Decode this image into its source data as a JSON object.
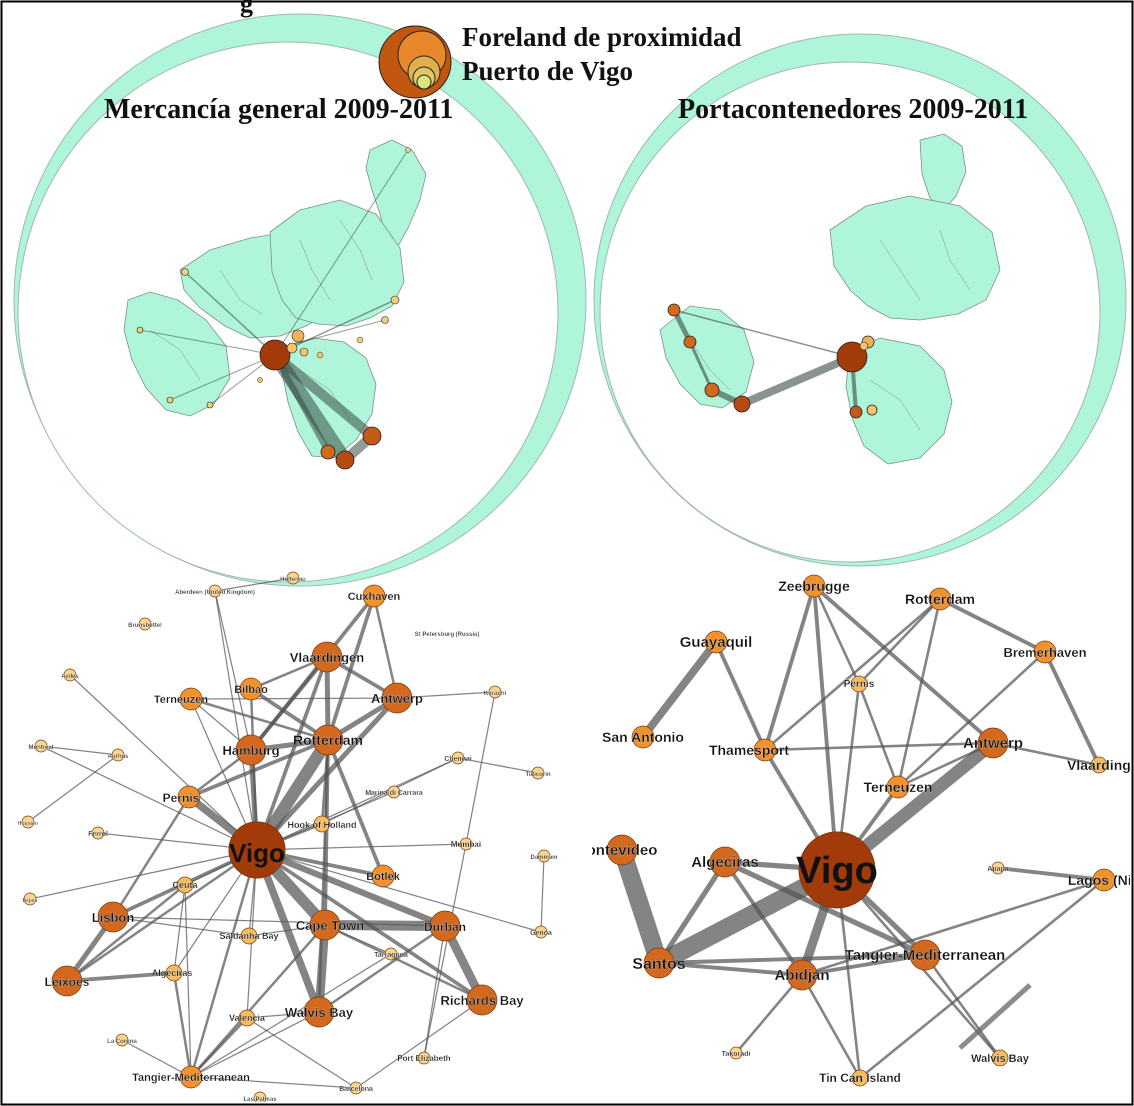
{
  "figure": {
    "top_text": "g",
    "legend": {
      "line1": "Foreland de proximidad",
      "line2": "Puerto de Vigo"
    },
    "panel_left_title": "Mercancía general 2009-2011",
    "panel_right_title": "Portacontenedores 2009-2011"
  },
  "colors": {
    "ocean": "#aef5d9",
    "land": "#aef5d9",
    "land_line": "#7f8f88",
    "edge": "#555555",
    "node_large": "#a23a0a",
    "node_mid": "#d2691e",
    "node_orange": "#f2922f",
    "node_light": "#f6bd60",
    "node_pale": "#fbd58c"
  },
  "left_network": {
    "nodes": [
      {
        "id": "vigo",
        "label": "Vigo",
        "tier": "hub"
      },
      {
        "id": "rotterdam",
        "label": "Rotterdam",
        "tier": "l"
      },
      {
        "id": "hamburg",
        "label": "Hamburg",
        "tier": "l"
      },
      {
        "id": "antwerp",
        "label": "Antwerp",
        "tier": "l"
      },
      {
        "id": "vlaardingen",
        "label": "Vlaardingen",
        "tier": "l"
      },
      {
        "id": "bilbao",
        "label": "Bilbao",
        "tier": "m"
      },
      {
        "id": "terneuzen",
        "label": "Terneuzen",
        "tier": "m"
      },
      {
        "id": "cuxhaven",
        "label": "Cuxhaven",
        "tier": "m"
      },
      {
        "id": "pernis",
        "label": "Pernis",
        "tier": "m"
      },
      {
        "id": "lisbon",
        "label": "Lisbon",
        "tier": "l"
      },
      {
        "id": "leixoes",
        "label": "Leixoes",
        "tier": "l"
      },
      {
        "id": "capetown",
        "label": "Cape Town",
        "tier": "l"
      },
      {
        "id": "durban",
        "label": "Durban",
        "tier": "l"
      },
      {
        "id": "walvis",
        "label": "Walvis Bay",
        "tier": "l"
      },
      {
        "id": "richards",
        "label": "Richards Bay",
        "tier": "l"
      },
      {
        "id": "botlek",
        "label": "Botlek",
        "tier": "m"
      },
      {
        "id": "tangier",
        "label": "Tangier-Mediterranean",
        "tier": "m"
      },
      {
        "id": "hook",
        "label": "Hook of Holland",
        "tier": "s"
      },
      {
        "id": "ceuta",
        "label": "Ceuta",
        "tier": "s"
      },
      {
        "id": "algeciras",
        "label": "Algeciras",
        "tier": "s"
      },
      {
        "id": "saldanha",
        "label": "Saldanha Bay",
        "tier": "s"
      },
      {
        "id": "valencia",
        "label": "Valencia",
        "tier": "s"
      },
      {
        "id": "tarragona",
        "label": "Tarragona",
        "tier": "xs"
      },
      {
        "id": "portelizabeth",
        "label": "Port Elizabeth",
        "tier": "xs"
      },
      {
        "id": "barcelona",
        "label": "Barcelona",
        "tier": "xs"
      },
      {
        "id": "laspalmas",
        "label": "Las Palmas",
        "tier": "xs"
      },
      {
        "id": "lacoruna",
        "label": "La Coruna",
        "tier": "xs"
      },
      {
        "id": "genoa",
        "label": "Genoa",
        "tier": "xs"
      },
      {
        "id": "mumbai",
        "label": "Mumbai",
        "tier": "xs"
      },
      {
        "id": "dammam",
        "label": "Dammam",
        "tier": "xs"
      },
      {
        "id": "chennai",
        "label": "Chennai",
        "tier": "xs"
      },
      {
        "id": "tuticorin",
        "label": "Tuticorin",
        "tier": "xs"
      },
      {
        "id": "marina",
        "label": "Marina di Carrara",
        "tier": "xs"
      },
      {
        "id": "karachi",
        "label": "Karachi",
        "tier": "xs"
      },
      {
        "id": "stpetersburg",
        "label": "St Petersburg (Russia)",
        "tier": "none"
      },
      {
        "id": "holtenau",
        "label": "Holtenau",
        "tier": "xs"
      },
      {
        "id": "aberdeen",
        "label": "Aberdeen (United Kingdom)",
        "tier": "xs"
      },
      {
        "id": "brunsbuttel",
        "label": "Brunsbuttel",
        "tier": "xs"
      },
      {
        "id": "aviles",
        "label": "Aviles",
        "tier": "xs"
      },
      {
        "id": "aarhus",
        "label": "Aarhus",
        "tier": "xs"
      },
      {
        "id": "montreal",
        "label": "Montreal",
        "tier": "xs"
      },
      {
        "id": "houston",
        "label": "Houston",
        "tier": "xs"
      },
      {
        "id": "ferrol",
        "label": "Ferrol",
        "tier": "xs"
      },
      {
        "id": "bejaia",
        "label": "Bejaia",
        "tier": "xs"
      }
    ],
    "edges": [
      [
        "vigo",
        "rotterdam",
        10
      ],
      [
        "vigo",
        "capetown",
        9
      ],
      [
        "vigo",
        "walvis",
        6
      ],
      [
        "vigo",
        "durban",
        5
      ],
      [
        "vigo",
        "pernis",
        6
      ],
      [
        "vigo",
        "hamburg",
        4
      ],
      [
        "vigo",
        "antwerp",
        4
      ],
      [
        "vigo",
        "vlaardingen",
        3
      ],
      [
        "vigo",
        "botlek",
        3
      ],
      [
        "vigo",
        "lisbon",
        3
      ],
      [
        "vigo",
        "leixoes",
        2
      ],
      [
        "vigo",
        "tangier",
        2
      ],
      [
        "vigo",
        "hook",
        2
      ],
      [
        "vigo",
        "bilbao",
        2
      ],
      [
        "vigo",
        "terneuzen",
        1
      ],
      [
        "vigo",
        "ceuta",
        1
      ],
      [
        "vigo",
        "algeciras",
        1
      ],
      [
        "vigo",
        "valencia",
        1
      ],
      [
        "vigo",
        "saldanha",
        1
      ],
      [
        "vigo",
        "mumbai",
        1
      ],
      [
        "vigo",
        "genoa",
        1
      ],
      [
        "vigo",
        "chennai",
        1
      ],
      [
        "vigo",
        "marina",
        1
      ],
      [
        "vigo",
        "aviles",
        1
      ],
      [
        "vigo",
        "ferrol",
        1
      ],
      [
        "vigo",
        "montreal",
        1
      ],
      [
        "vigo",
        "aberdeen",
        1
      ],
      [
        "vigo",
        "bejaia",
        1
      ],
      [
        "vigo",
        "richards",
        3
      ],
      [
        "rotterdam",
        "hamburg",
        4
      ],
      [
        "rotterdam",
        "antwerp",
        4
      ],
      [
        "rotterdam",
        "vlaardingen",
        4
      ],
      [
        "rotterdam",
        "cuxhaven",
        3
      ],
      [
        "rotterdam",
        "bilbao",
        3
      ],
      [
        "rotterdam",
        "terneuzen",
        2
      ],
      [
        "rotterdam",
        "pernis",
        3
      ],
      [
        "rotterdam",
        "botlek",
        3
      ],
      [
        "rotterdam",
        "capetown",
        3
      ],
      [
        "rotterdam",
        "hook",
        2
      ],
      [
        "rotterdam",
        "walvis",
        2
      ],
      [
        "capetown",
        "durban",
        8
      ],
      [
        "capetown",
        "walvis",
        7
      ],
      [
        "capetown",
        "richards",
        2
      ],
      [
        "capetown",
        "tangier",
        2
      ],
      [
        "capetown",
        "saldanha",
        1
      ],
      [
        "capetown",
        "tarragona",
        1
      ],
      [
        "durban",
        "richards",
        7
      ],
      [
        "durban",
        "walvis",
        2
      ],
      [
        "durban",
        "lisbon",
        1
      ],
      [
        "durban",
        "portelizabeth",
        1
      ],
      [
        "lisbon",
        "leixoes",
        4
      ],
      [
        "lisbon",
        "pernis",
        2
      ],
      [
        "leixoes",
        "algeciras",
        3
      ],
      [
        "leixoes",
        "ceuta",
        2
      ],
      [
        "tangier",
        "valencia",
        2
      ],
      [
        "tangier",
        "algeciras",
        2
      ],
      [
        "tangier",
        "ceuta",
        1
      ],
      [
        "tangier",
        "lacoruna",
        1
      ],
      [
        "tangier",
        "walvis",
        1
      ],
      [
        "tangier",
        "barcelona",
        1
      ],
      [
        "tangier",
        "tarragona",
        1
      ],
      [
        "valencia",
        "barcelona",
        1
      ],
      [
        "valencia",
        "walvis",
        1
      ],
      [
        "hamburg",
        "cuxhaven",
        3
      ],
      [
        "hamburg",
        "vlaardingen",
        3
      ],
      [
        "hamburg",
        "terneuzen",
        1
      ],
      [
        "antwerp",
        "vlaardingen",
        3
      ],
      [
        "antwerp",
        "cuxhaven",
        2
      ],
      [
        "antwerp",
        "karachi",
        1
      ],
      [
        "antwerp",
        "terneuzen",
        1
      ],
      [
        "bilbao",
        "vlaardingen",
        2
      ],
      [
        "pernis",
        "hamburg",
        2
      ],
      [
        "mumbai",
        "portelizabeth",
        1
      ],
      [
        "mumbai",
        "karachi",
        1
      ],
      [
        "chennai",
        "hook",
        1
      ],
      [
        "tuticorin",
        "chennai",
        1
      ],
      [
        "dammam",
        "genoa",
        1
      ],
      [
        "aberdeen",
        "holtenau",
        1
      ],
      [
        "montreal",
        "aarhus",
        1
      ],
      [
        "houston",
        "aarhus",
        1
      ],
      [
        "hamburg",
        "aberdeen",
        1
      ],
      [
        "saldanha",
        "lisbon",
        1
      ],
      [
        "ceuta",
        "algeciras",
        1
      ],
      [
        "barcelona",
        "richards",
        1
      ]
    ]
  },
  "right_network": {
    "nodes": [
      {
        "id": "vigo",
        "label": "Vigo",
        "tier": "hub"
      },
      {
        "id": "zeebrugge",
        "label": "Zeebrugge",
        "tier": "m"
      },
      {
        "id": "rotterdam",
        "label": "Rotterdam",
        "tier": "m"
      },
      {
        "id": "bremerhaven",
        "label": "Bremerhaven",
        "tier": "m"
      },
      {
        "id": "guayaquil",
        "label": "Guayaquil",
        "tier": "m"
      },
      {
        "id": "pernis",
        "label": "Pernis",
        "tier": "s"
      },
      {
        "id": "sanantonio",
        "label": "San Antonio",
        "tier": "m"
      },
      {
        "id": "thamesport",
        "label": "Thamesport",
        "tier": "m"
      },
      {
        "id": "antwerp",
        "label": "Antwerp",
        "tier": "l"
      },
      {
        "id": "vlaardingen",
        "label": "Vlaardinge",
        "tier": "s"
      },
      {
        "id": "terneuzen",
        "label": "Terneuzen",
        "tier": "m"
      },
      {
        "id": "montevideo",
        "label": "ontevideo",
        "tier": "l"
      },
      {
        "id": "algeciras",
        "label": "Algeciras",
        "tier": "l"
      },
      {
        "id": "apapa",
        "label": "Apapa",
        "tier": "xs"
      },
      {
        "id": "lagos",
        "label": "Lagos (Nig",
        "tier": "m"
      },
      {
        "id": "santos",
        "label": "Santos",
        "tier": "l"
      },
      {
        "id": "abidjan",
        "label": "Abidjan",
        "tier": "l"
      },
      {
        "id": "tangier",
        "label": "Tangier-Mediterranean",
        "tier": "l"
      },
      {
        "id": "takoradi",
        "label": "Takoradi",
        "tier": "xs"
      },
      {
        "id": "walvis",
        "label": "Walvis Bay",
        "tier": "s"
      },
      {
        "id": "tincan",
        "label": "Tin Can Island",
        "tier": "s"
      }
    ],
    "edges": [
      [
        "vigo",
        "antwerp",
        10
      ],
      [
        "vigo",
        "santos",
        14
      ],
      [
        "vigo",
        "abidjan",
        7
      ],
      [
        "vigo",
        "algeciras",
        4
      ],
      [
        "vigo",
        "zeebrugge",
        3
      ],
      [
        "vigo",
        "thamesport",
        3
      ],
      [
        "vigo",
        "tangier",
        4
      ],
      [
        "vigo",
        "terneuzen",
        3
      ],
      [
        "vigo",
        "pernis",
        2
      ],
      [
        "vigo",
        "walvis",
        2
      ],
      [
        "vigo",
        "tincan",
        2
      ],
      [
        "guayaquil",
        "sanantonio",
        6
      ],
      [
        "guayaquil",
        "thamesport",
        3
      ],
      [
        "montevideo",
        "santos",
        14
      ],
      [
        "santos",
        "algeciras",
        4
      ],
      [
        "santos",
        "tangier",
        3
      ],
      [
        "santos",
        "abidjan",
        3
      ],
      [
        "algeciras",
        "tangier",
        4
      ],
      [
        "algeciras",
        "abidjan",
        3
      ],
      [
        "zeebrugge",
        "thamesport",
        3
      ],
      [
        "zeebrugge",
        "antwerp",
        3
      ],
      [
        "zeebrugge",
        "pernis",
        2
      ],
      [
        "rotterdam",
        "pernis",
        2
      ],
      [
        "rotterdam",
        "terneuzen",
        2
      ],
      [
        "rotterdam",
        "thamesport",
        2
      ],
      [
        "rotterdam",
        "bremerhaven",
        3
      ],
      [
        "bremerhaven",
        "vlaardingen",
        3
      ],
      [
        "bremerhaven",
        "terneuzen",
        2
      ],
      [
        "antwerp",
        "vlaardingen",
        2
      ],
      [
        "pernis",
        "terneuzen",
        2
      ],
      [
        "thamesport",
        "antwerp",
        2
      ],
      [
        "antwerp",
        "terneuzen",
        2
      ],
      [
        "lagos",
        "apapa",
        3
      ],
      [
        "lagos",
        "abidjan",
        2
      ],
      [
        "lagos",
        "tincan",
        2
      ],
      [
        "abidjan",
        "takoradi",
        2
      ],
      [
        "abidjan",
        "tincan",
        2
      ],
      [
        "tangier",
        "walvis",
        2
      ],
      [
        "abidjan",
        "tangier",
        3
      ]
    ]
  }
}
